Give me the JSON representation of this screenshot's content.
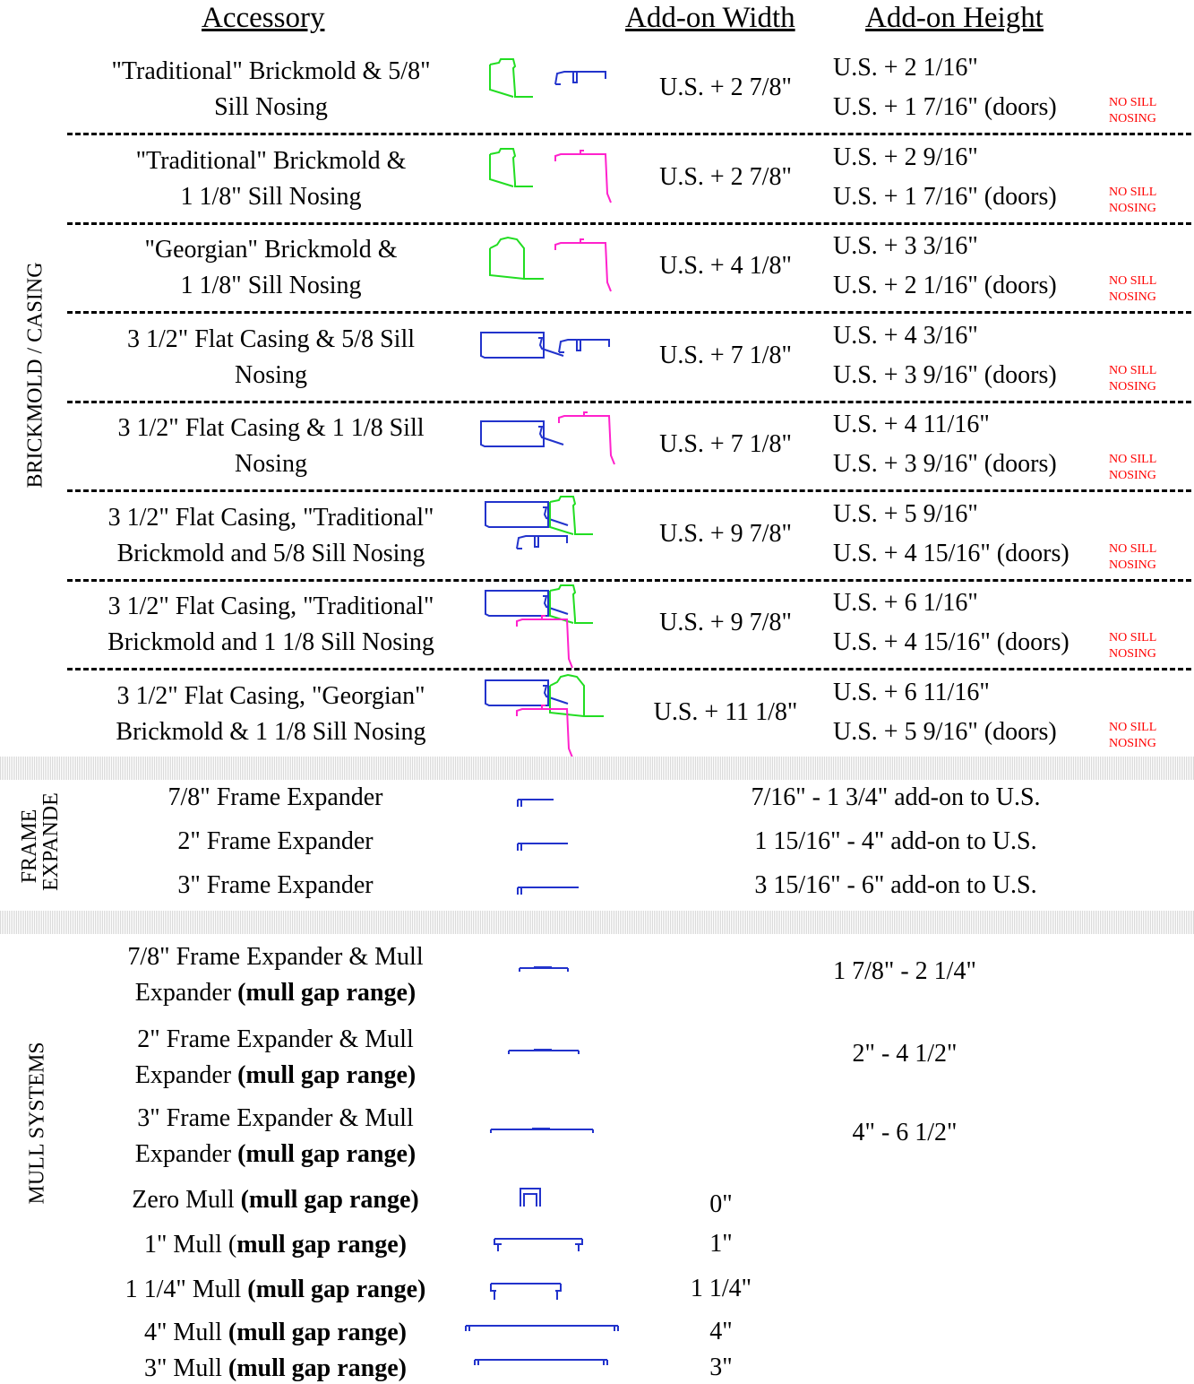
{
  "headers": {
    "accessory": "Accessory",
    "width": "Add-on Width",
    "height": "Add-on Height"
  },
  "colors": {
    "green": "#22dd22",
    "blue": "#2233cc",
    "magenta": "#ff22cc",
    "red": "#ff0000"
  },
  "sections": {
    "brickmold": "BRICKMOLD / CASING",
    "frame_expander": "FRAME EXPANDE",
    "mull": "MULL SYSTEMS"
  },
  "brickmold_rows": [
    {
      "l1": "\"Traditional\" Brickmold & 5/8\"",
      "l2": "Sill Nosing",
      "width": "U.S. + 2 7/8\"",
      "h1": "U.S. + 2  1/16\"",
      "h2": "U.S. + 1 7/16\" (doors)",
      "ns1": "NO SILL",
      "ns2": "NOSING",
      "icon": [
        "trad",
        "nose58"
      ]
    },
    {
      "l1": "\"Traditional\" Brickmold &",
      "l2": "1 1/8\" Sill Nosing",
      "width": "U.S. + 2 7/8\"",
      "h1": "U.S. + 2  9/16\"",
      "h2": "U.S. + 1 7/16\" (doors)",
      "ns1": "NO SILL",
      "ns2": "NOSING",
      "icon": [
        "trad",
        "nose118"
      ]
    },
    {
      "l1": "\"Georgian\" Brickmold &",
      "l2": "1 1/8\" Sill Nosing",
      "width": "U.S. + 4 1/8\"",
      "h1": "U.S. + 3  3/16\"",
      "h2": "U.S. + 2  1/16\" (doors)",
      "ns1": "NO SILL",
      "ns2": "NOSING",
      "icon": [
        "georg",
        "nose118"
      ]
    },
    {
      "l1": "3 1/2\" Flat Casing & 5/8 Sill",
      "l2": "Nosing",
      "width": "U.S. + 7 1/8\"",
      "h1": "U.S. + 4 3/16\"",
      "h2": "U.S. + 3 9/16\" (doors)",
      "ns1": "NO SILL",
      "ns2": "NOSING",
      "icon": [
        "flat",
        "nose58"
      ]
    },
    {
      "l1": "3 1/2\" Flat Casing & 1 1/8 Sill",
      "l2": "Nosing",
      "width": "U.S. + 7 1/8\"",
      "h1": "U.S. + 4 11/16\"",
      "h2": "U.S. + 3 9/16\" (doors)",
      "ns1": "NO SILL",
      "ns2": "NOSING",
      "icon": [
        "flat",
        "nose118"
      ]
    },
    {
      "l1": "3 1/2\" Flat Casing, \"Traditional\"",
      "l2": "Brickmold and  5/8 Sill Nosing",
      "width": "U.S. + 9 7/8\"",
      "h1": "U.S. + 5 9/16\"",
      "h2": "U.S. + 4 15/16\" (doors)",
      "ns1": "NO SILL",
      "ns2": "NOSING",
      "icon": [
        "flattrad",
        "nose58"
      ]
    },
    {
      "l1": "3 1/2\" Flat Casing, \"Traditional\"",
      "l2": "Brickmold and   1 1/8 Sill Nosing",
      "width": "U.S. + 9 7/8\"",
      "h1": "U.S. + 6 1/16\"",
      "h2": "U.S. + 4 15/16\" (doors)",
      "ns1": "NO SILL",
      "ns2": "NOSING",
      "icon": [
        "flattrad",
        "nose118"
      ]
    },
    {
      "l1": "3 1/2\" Flat Casing, \"Georgian\"",
      "l2": "Brickmold & 1 1/8 Sill Nosing",
      "width": "U.S. + 11 1/8\"",
      "h1": "U.S. + 6 11/16\"",
      "h2": "U.S. + 5 9/16\" (doors)",
      "ns1": "NO SILL",
      "ns2": "NOSING",
      "icon": [
        "flatgeorg",
        "nose118"
      ]
    }
  ],
  "frame_expanders": [
    {
      "label": "7/8\" Frame Expander",
      "range": "7/16\" - 1 3/4\" add-on to U.S."
    },
    {
      "label": "2\" Frame Expander",
      "range": "1 15/16\" - 4\" add-on to U.S."
    },
    {
      "label": "3\" Frame Expander",
      "range": "3 15/16\" - 6\" add-on to U.S."
    }
  ],
  "mull_expanders": [
    {
      "l1": "7/8\" Frame Expander & Mull",
      "l2a": "Expander ",
      "l2b": "(mull gap range)",
      "range": "1 7/8\" - 2 1/4\""
    },
    {
      "l1": "2\" Frame Expander & Mull",
      "l2a": "Expander ",
      "l2b": "(mull gap range)",
      "range": "2\" - 4 1/2\""
    },
    {
      "l1": "3\" Frame Expander & Mull",
      "l2a": "Expander ",
      "l2b": "(mull gap range)",
      "range": "4\" - 6 1/2\""
    }
  ],
  "mulls": [
    {
      "a": "Zero Mull ",
      "b": "(mull gap range)",
      "value": "0\""
    },
    {
      "a": "1\" Mull (",
      "b": "mull gap range)",
      "value": "1\""
    },
    {
      "a": "1 1/4\" Mull ",
      "b": "(mull gap range)",
      "value": "1 1/4\""
    },
    {
      "a": "4\" Mull ",
      "b": "(mull gap range)",
      "value": "4\""
    },
    {
      "a": "3\" Mull ",
      "b": "(mull gap range)",
      "value": "3\""
    }
  ]
}
